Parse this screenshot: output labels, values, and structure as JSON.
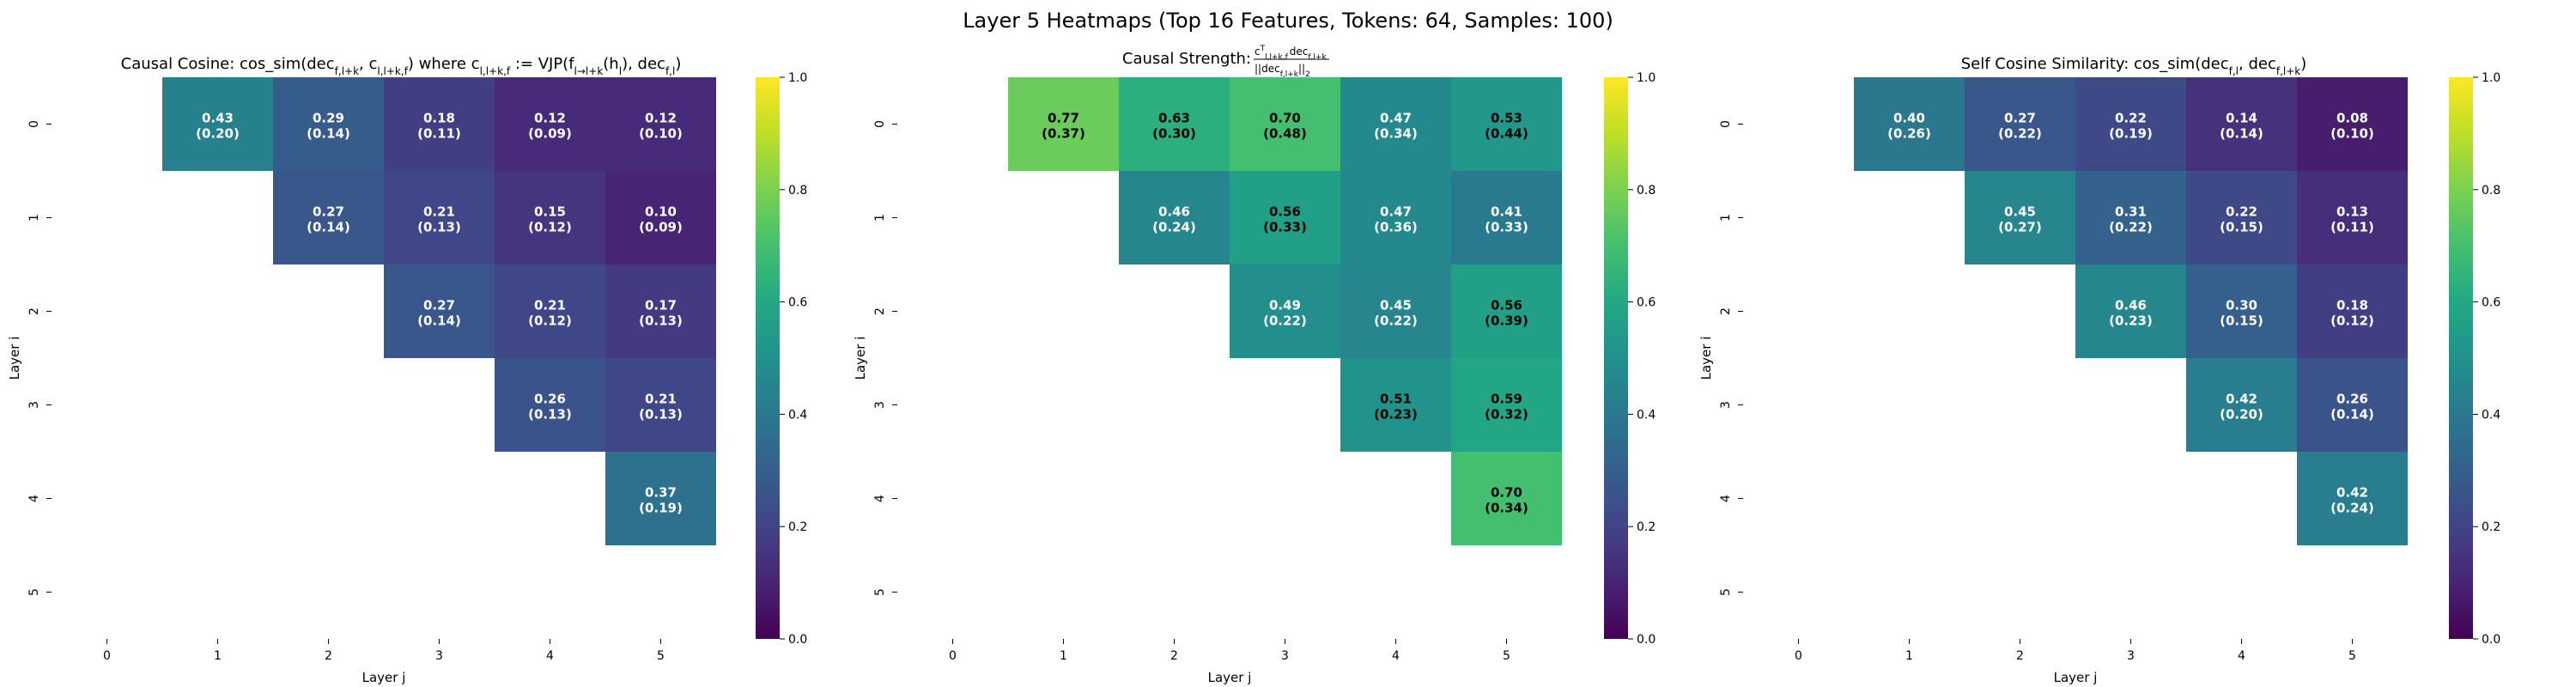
{
  "figure": {
    "title": "Layer 5 Heatmaps (Top 16 Features, Tokens: 64, Samples: 100)"
  },
  "colors": {
    "colormap": "viridis",
    "text_dark": "#000000",
    "text_light": "#ffffff"
  },
  "chart_data": [
    {
      "type": "heatmap",
      "title": "Causal Cosine: cos_sim(dec_{f,l+k}, c_{l,l+k,f}) where c_{l,l+k,f} := VJP(f_{l→l+k}(h_l), dec_{f,l})",
      "title_parts": {
        "a": "Causal Cosine: cos_sim(dec",
        "a_sub": "f,l+k",
        "b": ", c",
        "b_sub": "l,l+k,f",
        "c": ") where c",
        "c_sub": "l,l+k,f",
        "d": " := VJP(f",
        "d_sub": "l→l+k",
        "e": "(h",
        "e_sub": "l",
        "f": "), dec",
        "f_sub": "f,l",
        "g": ")"
      },
      "xlabel": "Layer j",
      "ylabel": "Layer i",
      "x_ticks": [
        "0",
        "1",
        "2",
        "3",
        "4",
        "5"
      ],
      "y_ticks": [
        "0",
        "1",
        "2",
        "3",
        "4",
        "5"
      ],
      "colorbar": {
        "min": 0.0,
        "max": 1.0,
        "ticks": [
          "0.0",
          "0.2",
          "0.4",
          "0.6",
          "0.8",
          "1.0"
        ]
      },
      "cells": [
        {
          "i": 0,
          "j": 1,
          "value": 0.43,
          "std": 0.2,
          "label": "0.43",
          "sublabel": "(0.20)"
        },
        {
          "i": 0,
          "j": 2,
          "value": 0.29,
          "std": 0.14,
          "label": "0.29",
          "sublabel": "(0.14)"
        },
        {
          "i": 0,
          "j": 3,
          "value": 0.18,
          "std": 0.11,
          "label": "0.18",
          "sublabel": "(0.11)"
        },
        {
          "i": 0,
          "j": 4,
          "value": 0.12,
          "std": 0.09,
          "label": "0.12",
          "sublabel": "(0.09)"
        },
        {
          "i": 0,
          "j": 5,
          "value": 0.12,
          "std": 0.1,
          "label": "0.12",
          "sublabel": "(0.10)"
        },
        {
          "i": 1,
          "j": 2,
          "value": 0.27,
          "std": 0.14,
          "label": "0.27",
          "sublabel": "(0.14)"
        },
        {
          "i": 1,
          "j": 3,
          "value": 0.21,
          "std": 0.13,
          "label": "0.21",
          "sublabel": "(0.13)"
        },
        {
          "i": 1,
          "j": 4,
          "value": 0.15,
          "std": 0.12,
          "label": "0.15",
          "sublabel": "(0.12)"
        },
        {
          "i": 1,
          "j": 5,
          "value": 0.1,
          "std": 0.09,
          "label": "0.10",
          "sublabel": "(0.09)"
        },
        {
          "i": 2,
          "j": 3,
          "value": 0.27,
          "std": 0.14,
          "label": "0.27",
          "sublabel": "(0.14)"
        },
        {
          "i": 2,
          "j": 4,
          "value": 0.21,
          "std": 0.12,
          "label": "0.21",
          "sublabel": "(0.12)"
        },
        {
          "i": 2,
          "j": 5,
          "value": 0.17,
          "std": 0.13,
          "label": "0.17",
          "sublabel": "(0.13)"
        },
        {
          "i": 3,
          "j": 4,
          "value": 0.26,
          "std": 0.13,
          "label": "0.26",
          "sublabel": "(0.13)"
        },
        {
          "i": 3,
          "j": 5,
          "value": 0.21,
          "std": 0.13,
          "label": "0.21",
          "sublabel": "(0.13)"
        },
        {
          "i": 4,
          "j": 5,
          "value": 0.37,
          "std": 0.19,
          "label": "0.37",
          "sublabel": "(0.19)"
        }
      ]
    },
    {
      "type": "heatmap",
      "title": "Causal Strength: c^T_{l,l+k,f} dec_{f,l+k} / ||dec_{f,l+k}||_2",
      "title_parts": {
        "a": "Causal Strength: ",
        "num": "c",
        "num_sup": "T",
        "num_sub": "l,l+k,f",
        "num_b": "dec",
        "num_b_sub": "f,l+k",
        "den": "||dec",
        "den_sub": "f,l+k",
        "den_b": "||",
        "den_b_sub": "2"
      },
      "xlabel": "Layer j",
      "ylabel": "Layer i",
      "x_ticks": [
        "0",
        "1",
        "2",
        "3",
        "4",
        "5"
      ],
      "y_ticks": [
        "0",
        "1",
        "2",
        "3",
        "4",
        "5"
      ],
      "colorbar": {
        "min": 0.0,
        "max": 1.0,
        "ticks": [
          "0.0",
          "0.2",
          "0.4",
          "0.6",
          "0.8",
          "1.0"
        ]
      },
      "cells": [
        {
          "i": 0,
          "j": 1,
          "value": 0.77,
          "std": 0.37,
          "label": "0.77",
          "sublabel": "(0.37)"
        },
        {
          "i": 0,
          "j": 2,
          "value": 0.63,
          "std": 0.3,
          "label": "0.63",
          "sublabel": "(0.30)"
        },
        {
          "i": 0,
          "j": 3,
          "value": 0.7,
          "std": 0.48,
          "label": "0.70",
          "sublabel": "(0.48)"
        },
        {
          "i": 0,
          "j": 4,
          "value": 0.47,
          "std": 0.34,
          "label": "0.47",
          "sublabel": "(0.34)"
        },
        {
          "i": 0,
          "j": 5,
          "value": 0.53,
          "std": 0.44,
          "label": "0.53",
          "sublabel": "(0.44)"
        },
        {
          "i": 1,
          "j": 2,
          "value": 0.46,
          "std": 0.24,
          "label": "0.46",
          "sublabel": "(0.24)"
        },
        {
          "i": 1,
          "j": 3,
          "value": 0.56,
          "std": 0.33,
          "label": "0.56",
          "sublabel": "(0.33)"
        },
        {
          "i": 1,
          "j": 4,
          "value": 0.47,
          "std": 0.36,
          "label": "0.47",
          "sublabel": "(0.36)"
        },
        {
          "i": 1,
          "j": 5,
          "value": 0.41,
          "std": 0.33,
          "label": "0.41",
          "sublabel": "(0.33)"
        },
        {
          "i": 2,
          "j": 3,
          "value": 0.49,
          "std": 0.22,
          "label": "0.49",
          "sublabel": "(0.22)"
        },
        {
          "i": 2,
          "j": 4,
          "value": 0.45,
          "std": 0.22,
          "label": "0.45",
          "sublabel": "(0.22)"
        },
        {
          "i": 2,
          "j": 5,
          "value": 0.56,
          "std": 0.39,
          "label": "0.56",
          "sublabel": "(0.39)"
        },
        {
          "i": 3,
          "j": 4,
          "value": 0.51,
          "std": 0.23,
          "label": "0.51",
          "sublabel": "(0.23)"
        },
        {
          "i": 3,
          "j": 5,
          "value": 0.59,
          "std": 0.32,
          "label": "0.59",
          "sublabel": "(0.32)"
        },
        {
          "i": 4,
          "j": 5,
          "value": 0.7,
          "std": 0.34,
          "label": "0.70",
          "sublabel": "(0.34)"
        }
      ]
    },
    {
      "type": "heatmap",
      "title": "Self Cosine Similarity: cos_sim(dec_{f,l}, dec_{f,l+k})",
      "title_parts": {
        "a": "Self Cosine Similarity: cos_sim(dec",
        "a_sub": "f,l",
        "b": ", dec",
        "b_sub": "f,l+k",
        "c": ")"
      },
      "xlabel": "Layer j",
      "ylabel": "Layer i",
      "x_ticks": [
        "0",
        "1",
        "2",
        "3",
        "4",
        "5"
      ],
      "y_ticks": [
        "0",
        "1",
        "2",
        "3",
        "4",
        "5"
      ],
      "colorbar": {
        "min": 0.0,
        "max": 1.0,
        "ticks": [
          "0.0",
          "0.2",
          "0.4",
          "0.6",
          "0.8",
          "1.0"
        ]
      },
      "cells": [
        {
          "i": 0,
          "j": 1,
          "value": 0.4,
          "std": 0.26,
          "label": "0.40",
          "sublabel": "(0.26)"
        },
        {
          "i": 0,
          "j": 2,
          "value": 0.27,
          "std": 0.22,
          "label": "0.27",
          "sublabel": "(0.22)"
        },
        {
          "i": 0,
          "j": 3,
          "value": 0.22,
          "std": 0.19,
          "label": "0.22",
          "sublabel": "(0.19)"
        },
        {
          "i": 0,
          "j": 4,
          "value": 0.14,
          "std": 0.14,
          "label": "0.14",
          "sublabel": "(0.14)"
        },
        {
          "i": 0,
          "j": 5,
          "value": 0.08,
          "std": 0.1,
          "label": "0.08",
          "sublabel": "(0.10)"
        },
        {
          "i": 1,
          "j": 2,
          "value": 0.45,
          "std": 0.27,
          "label": "0.45",
          "sublabel": "(0.27)"
        },
        {
          "i": 1,
          "j": 3,
          "value": 0.31,
          "std": 0.22,
          "label": "0.31",
          "sublabel": "(0.22)"
        },
        {
          "i": 1,
          "j": 4,
          "value": 0.22,
          "std": 0.15,
          "label": "0.22",
          "sublabel": "(0.15)"
        },
        {
          "i": 1,
          "j": 5,
          "value": 0.13,
          "std": 0.11,
          "label": "0.13",
          "sublabel": "(0.11)"
        },
        {
          "i": 2,
          "j": 3,
          "value": 0.46,
          "std": 0.23,
          "label": "0.46",
          "sublabel": "(0.23)"
        },
        {
          "i": 2,
          "j": 4,
          "value": 0.3,
          "std": 0.15,
          "label": "0.30",
          "sublabel": "(0.15)"
        },
        {
          "i": 2,
          "j": 5,
          "value": 0.18,
          "std": 0.12,
          "label": "0.18",
          "sublabel": "(0.12)"
        },
        {
          "i": 3,
          "j": 4,
          "value": 0.42,
          "std": 0.2,
          "label": "0.42",
          "sublabel": "(0.20)"
        },
        {
          "i": 3,
          "j": 5,
          "value": 0.26,
          "std": 0.14,
          "label": "0.26",
          "sublabel": "(0.14)"
        },
        {
          "i": 4,
          "j": 5,
          "value": 0.42,
          "std": 0.24,
          "label": "0.42",
          "sublabel": "(0.24)"
        }
      ]
    }
  ]
}
